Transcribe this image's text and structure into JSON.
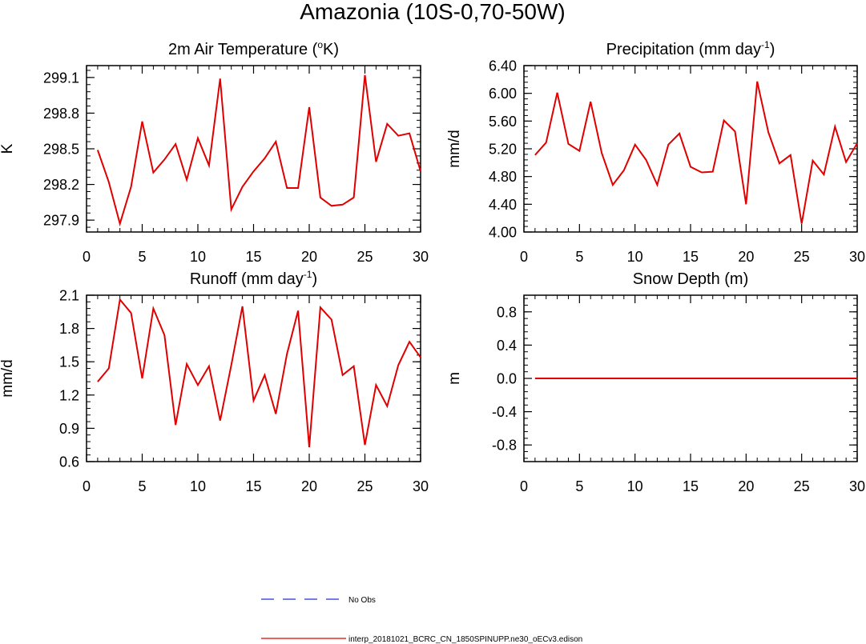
{
  "figure": {
    "title": "Amazonia (10S-0,70-50W)"
  },
  "legend": {
    "entries": [
      {
        "label": "No Obs",
        "color": "#2030d0",
        "style": "dashed"
      },
      {
        "label": "interp_20181021_BCRC_CN_1850SPINUPP.ne30_oECv3.edison",
        "color": "#e00000",
        "style": "solid"
      }
    ]
  },
  "chart_data": [
    {
      "type": "line",
      "title": "2m Air Temperature (",
      "title_sup": "o",
      "title_tail": "K)",
      "xlabel": "",
      "ylabel": "K",
      "xlim": [
        0,
        30
      ],
      "ylim": [
        297.8,
        299.2
      ],
      "xticks": [
        0,
        5,
        10,
        15,
        20,
        25,
        30
      ],
      "yticks": [
        297.9,
        298.2,
        298.5,
        298.8,
        299.1
      ],
      "ytick_labels": [
        "297.9",
        "298.2",
        "298.5",
        "298.8",
        "299.1"
      ],
      "color": "#e00000",
      "series": [
        {
          "name": "interp_20181021_BCRC_CN_1850SPINUPP.ne30_oECv3.edison",
          "x": [
            1,
            2,
            3,
            4,
            5,
            6,
            7,
            8,
            9,
            10,
            11,
            12,
            13,
            14,
            15,
            16,
            17,
            18,
            19,
            20,
            21,
            22,
            23,
            24,
            25,
            26,
            27,
            28,
            29,
            30
          ],
          "y": [
            298.49,
            298.22,
            297.87,
            298.18,
            298.73,
            298.3,
            298.41,
            298.54,
            298.24,
            298.59,
            298.36,
            299.09,
            297.99,
            298.18,
            298.31,
            298.42,
            298.56,
            298.17,
            298.17,
            298.85,
            298.09,
            298.02,
            298.03,
            298.09,
            299.12,
            298.39,
            298.71,
            298.61,
            298.63,
            298.31
          ]
        }
      ]
    },
    {
      "type": "line",
      "title": "Precipitation (mm day",
      "title_sup": "-1",
      "title_tail": ")",
      "xlabel": "",
      "ylabel": "mm/d",
      "xlim": [
        0,
        30
      ],
      "ylim": [
        4.0,
        6.4
      ],
      "xticks": [
        0,
        5,
        10,
        15,
        20,
        25,
        30
      ],
      "yticks": [
        4.0,
        4.4,
        4.8,
        5.2,
        5.6,
        6.0,
        6.4
      ],
      "ytick_labels": [
        "4.00",
        "4.40",
        "4.80",
        "5.20",
        "5.60",
        "6.00",
        "6.40"
      ],
      "color": "#e00000",
      "series": [
        {
          "name": "interp_20181021_BCRC_CN_1850SPINUPP.ne30_oECv3.edison",
          "x": [
            1,
            2,
            3,
            4,
            5,
            6,
            7,
            8,
            9,
            10,
            11,
            12,
            13,
            14,
            15,
            16,
            17,
            18,
            19,
            20,
            21,
            22,
            23,
            24,
            25,
            26,
            27,
            28,
            29,
            30
          ],
          "y": [
            5.11,
            5.29,
            6.01,
            5.27,
            5.17,
            5.88,
            5.14,
            4.68,
            4.89,
            5.26,
            5.04,
            4.68,
            5.26,
            5.42,
            4.94,
            4.86,
            4.87,
            5.61,
            5.45,
            4.4,
            6.17,
            5.44,
            4.99,
            5.11,
            4.12,
            5.03,
            4.83,
            5.52,
            5.01,
            5.28
          ]
        }
      ]
    },
    {
      "type": "line",
      "title": "Runoff (mm day",
      "title_sup": "-1",
      "title_tail": ")",
      "xlabel": "",
      "ylabel": "mm/d",
      "xlim": [
        0,
        30
      ],
      "ylim": [
        0.6,
        2.1
      ],
      "xticks": [
        0,
        5,
        10,
        15,
        20,
        25,
        30
      ],
      "yticks": [
        0.6,
        0.9,
        1.2,
        1.5,
        1.8,
        2.1
      ],
      "ytick_labels": [
        "0.6",
        "0.9",
        "1.2",
        "1.5",
        "1.8",
        "2.1"
      ],
      "color": "#e00000",
      "series": [
        {
          "name": "interp_20181021_BCRC_CN_1850SPINUPP.ne30_oECv3.edison",
          "x": [
            1,
            2,
            3,
            4,
            5,
            6,
            7,
            8,
            9,
            10,
            11,
            12,
            13,
            14,
            15,
            16,
            17,
            18,
            19,
            20,
            21,
            22,
            23,
            24,
            25,
            26,
            27,
            28,
            29,
            30
          ],
          "y": [
            1.32,
            1.44,
            2.06,
            1.94,
            1.35,
            1.98,
            1.74,
            0.93,
            1.48,
            1.29,
            1.46,
            0.97,
            1.47,
            2.0,
            1.15,
            1.38,
            1.03,
            1.57,
            1.96,
            0.73,
            1.99,
            1.88,
            1.38,
            1.46,
            0.75,
            1.29,
            1.1,
            1.47,
            1.68,
            1.54
          ]
        }
      ]
    },
    {
      "type": "line",
      "title": "Snow Depth (m)",
      "title_sup": "",
      "title_tail": "",
      "xlabel": "",
      "ylabel": "m",
      "xlim": [
        0,
        30
      ],
      "ylim": [
        -1.0,
        1.0
      ],
      "xticks": [
        0,
        5,
        10,
        15,
        20,
        25,
        30
      ],
      "yticks": [
        -0.8,
        -0.4,
        0.0,
        0.4,
        0.8
      ],
      "ytick_labels": [
        "-0.8",
        "-0.4",
        "0.0",
        "0.4",
        "0.8"
      ],
      "color": "#e00000",
      "series": [
        {
          "name": "interp_20181021_BCRC_CN_1850SPINUPP.ne30_oECv3.edison",
          "x": [
            1,
            2,
            3,
            4,
            5,
            6,
            7,
            8,
            9,
            10,
            11,
            12,
            13,
            14,
            15,
            16,
            17,
            18,
            19,
            20,
            21,
            22,
            23,
            24,
            25,
            26,
            27,
            28,
            29,
            30
          ],
          "y": [
            0,
            0,
            0,
            0,
            0,
            0,
            0,
            0,
            0,
            0,
            0,
            0,
            0,
            0,
            0,
            0,
            0,
            0,
            0,
            0,
            0,
            0,
            0,
            0,
            0,
            0,
            0,
            0,
            0,
            0
          ]
        }
      ]
    }
  ]
}
